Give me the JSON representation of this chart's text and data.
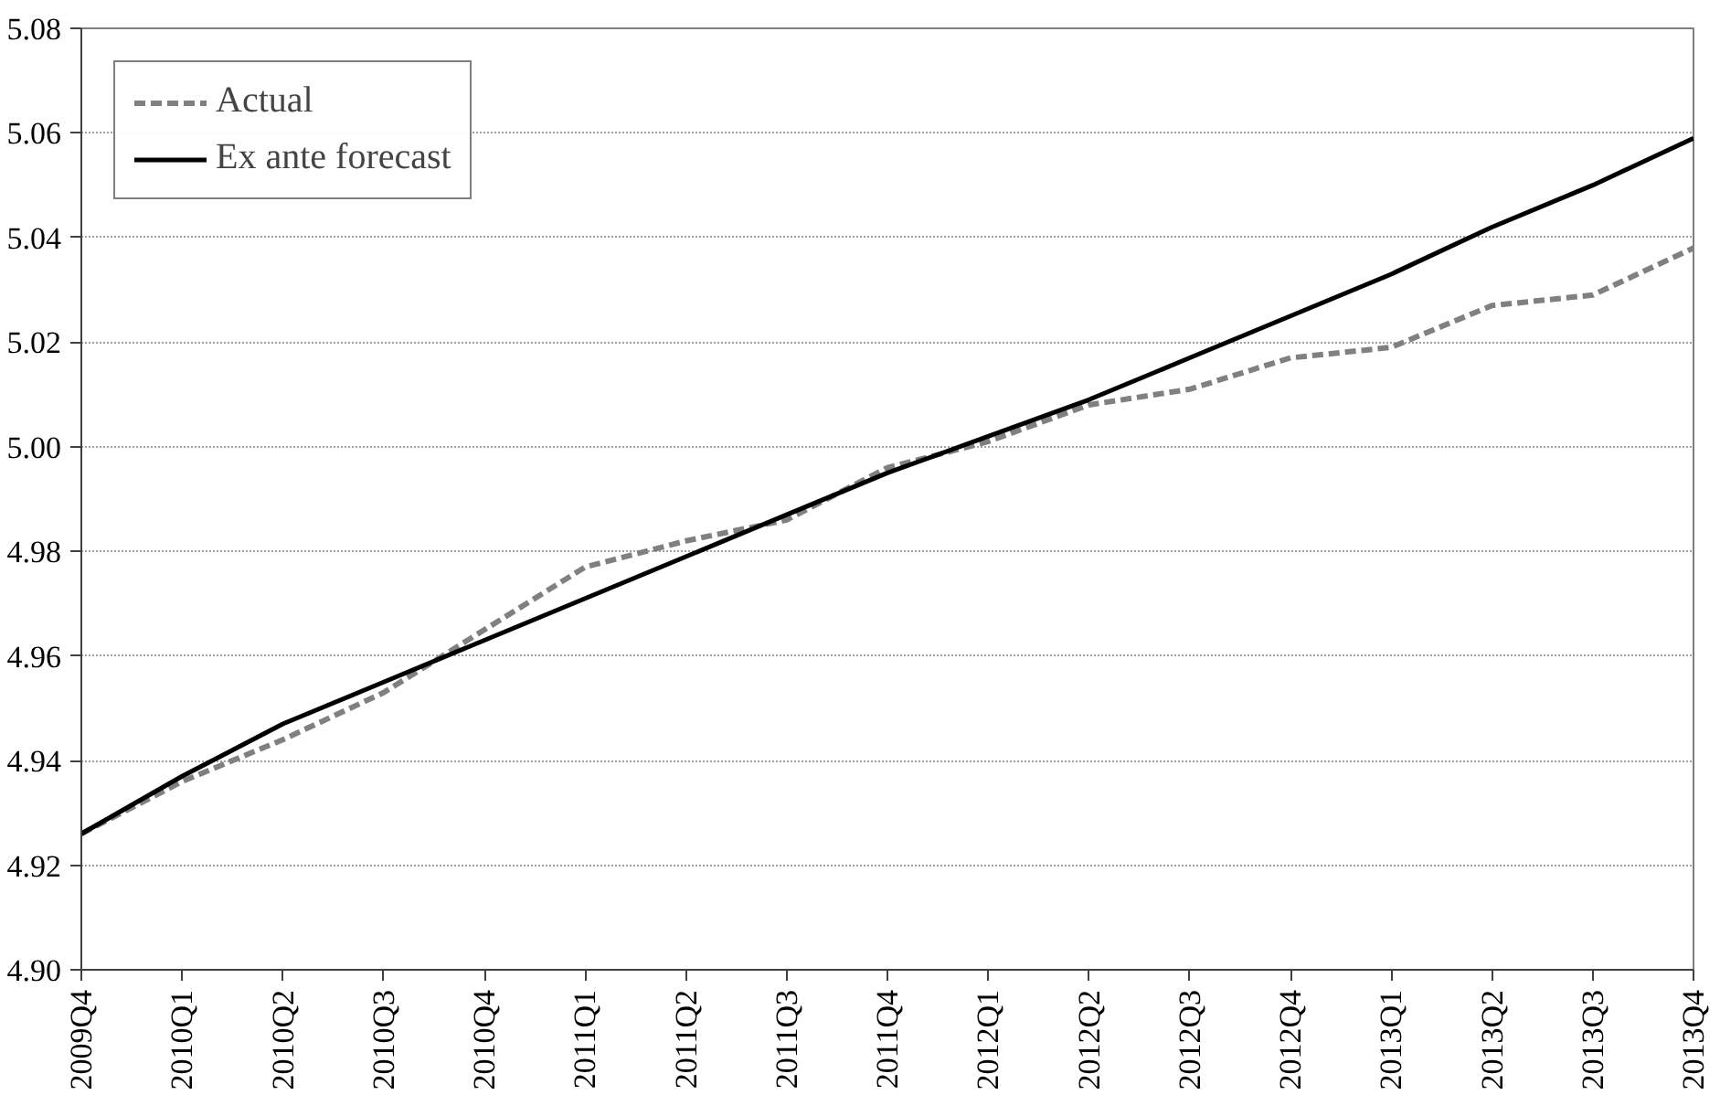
{
  "chart_data": {
    "type": "line",
    "categories": [
      "2009Q4",
      "2010Q1",
      "2010Q2",
      "2010Q3",
      "2010Q4",
      "2011Q1",
      "2011Q2",
      "2011Q3",
      "2011Q4",
      "2012Q1",
      "2012Q2",
      "2012Q3",
      "2012Q4",
      "2013Q1",
      "2013Q2",
      "2013Q3",
      "2013Q4"
    ],
    "series": [
      {
        "name": "Actual",
        "color": "#808080",
        "line_style": "dashed",
        "values": [
          4.926,
          4.936,
          4.944,
          4.953,
          4.965,
          4.977,
          4.982,
          4.986,
          4.996,
          5.001,
          5.008,
          5.011,
          5.017,
          5.019,
          5.027,
          5.029,
          5.038
        ]
      },
      {
        "name": "Ex ante forecast",
        "color": "#000000",
        "line_style": "solid",
        "values": [
          4.926,
          4.937,
          4.947,
          4.955,
          4.963,
          4.971,
          4.979,
          4.987,
          4.995,
          5.002,
          5.009,
          5.017,
          5.025,
          5.033,
          5.042,
          5.05,
          5.059
        ]
      }
    ],
    "ylim": [
      4.9,
      5.08
    ],
    "yticks": [
      {
        "value": 4.9,
        "label": "4.90"
      },
      4.92,
      4.94,
      4.96,
      4.98,
      {
        "value": 5.0,
        "label": "5.00"
      },
      5.02,
      5.04,
      5.06,
      5.08
    ],
    "grid": "y",
    "legend": "top left",
    "marker": "none"
  }
}
